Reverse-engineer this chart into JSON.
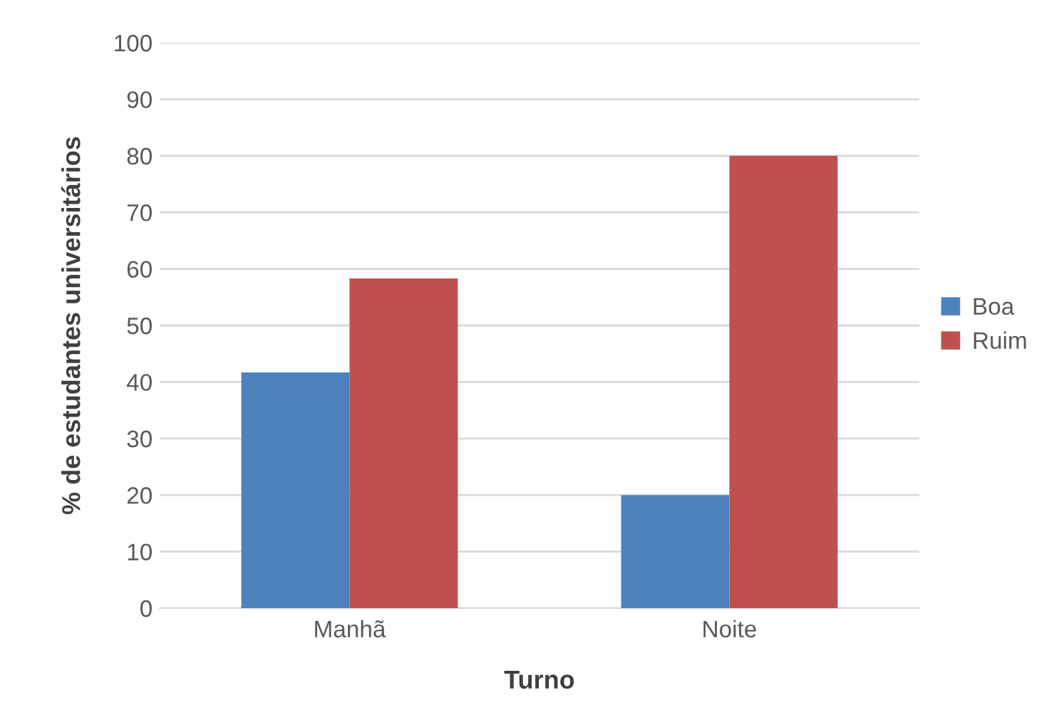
{
  "chart_data": {
    "type": "bar",
    "xlabel": "Turno",
    "ylabel": "% de estudantes universitários",
    "categories": [
      "Manhã",
      "Noite"
    ],
    "series": [
      {
        "name": "Boa",
        "color": "#4f81bd",
        "values": [
          41.7,
          20
        ]
      },
      {
        "name": "Ruim",
        "color": "#c0504d",
        "values": [
          58.3,
          80
        ]
      }
    ],
    "ylim": [
      0,
      100
    ],
    "yticks": [
      0,
      10,
      20,
      30,
      40,
      50,
      60,
      70,
      80,
      90,
      100
    ],
    "grid": "y",
    "legend": "right"
  }
}
